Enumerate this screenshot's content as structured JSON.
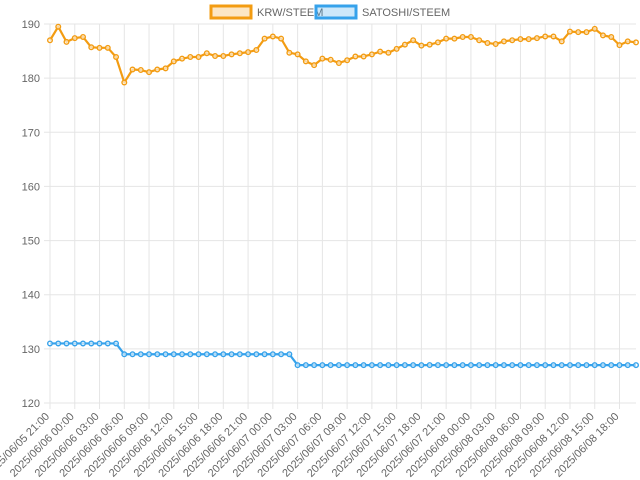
{
  "chart_data": {
    "type": "line",
    "title": "",
    "xlabel": "",
    "ylabel": "",
    "ylim": [
      120,
      190
    ],
    "yticks": [
      120,
      130,
      140,
      150,
      160,
      170,
      180,
      190
    ],
    "grid": true,
    "legend_position": "top-center",
    "categories": [
      "2025/06/05 21:00",
      "2025/06/05 22:00",
      "2025/06/05 23:00",
      "2025/06/06 00:00",
      "2025/06/06 01:00",
      "2025/06/06 02:00",
      "2025/06/06 03:00",
      "2025/06/06 04:00",
      "2025/06/06 05:00",
      "2025/06/06 06:00",
      "2025/06/06 07:00",
      "2025/06/06 08:00",
      "2025/06/06 09:00",
      "2025/06/06 10:00",
      "2025/06/06 11:00",
      "2025/06/06 12:00",
      "2025/06/06 13:00",
      "2025/06/06 14:00",
      "2025/06/06 15:00",
      "2025/06/06 16:00",
      "2025/06/06 17:00",
      "2025/06/06 18:00",
      "2025/06/06 19:00",
      "2025/06/06 20:00",
      "2025/06/06 21:00",
      "2025/06/06 22:00",
      "2025/06/06 23:00",
      "2025/06/07 00:00",
      "2025/06/07 01:00",
      "2025/06/07 02:00",
      "2025/06/07 03:00",
      "2025/06/07 04:00",
      "2025/06/07 05:00",
      "2025/06/07 06:00",
      "2025/06/07 07:00",
      "2025/06/07 08:00",
      "2025/06/07 09:00",
      "2025/06/07 10:00",
      "2025/06/07 11:00",
      "2025/06/07 12:00",
      "2025/06/07 13:00",
      "2025/06/07 14:00",
      "2025/06/07 15:00",
      "2025/06/07 16:00",
      "2025/06/07 17:00",
      "2025/06/07 18:00",
      "2025/06/07 19:00",
      "2025/06/07 20:00",
      "2025/06/07 21:00",
      "2025/06/07 22:00",
      "2025/06/07 23:00",
      "2025/06/08 00:00",
      "2025/06/08 01:00",
      "2025/06/08 02:00",
      "2025/06/08 03:00",
      "2025/06/08 04:00",
      "2025/06/08 05:00",
      "2025/06/08 06:00",
      "2025/06/08 07:00",
      "2025/06/08 08:00",
      "2025/06/08 09:00",
      "2025/06/08 10:00",
      "2025/06/08 11:00",
      "2025/06/08 12:00",
      "2025/06/08 13:00",
      "2025/06/08 14:00",
      "2025/06/08 15:00",
      "2025/06/08 16:00",
      "2025/06/08 17:00",
      "2025/06/08 18:00",
      "2025/06/08 19:00",
      "2025/06/08 20:00"
    ],
    "label_every": 3,
    "series": [
      {
        "name": "KRW/STEEM",
        "color": "#f39c12",
        "values": [
          187.0,
          189.5,
          186.7,
          187.4,
          187.6,
          185.7,
          185.6,
          185.6,
          183.9,
          179.2,
          181.6,
          181.5,
          181.1,
          181.6,
          181.8,
          183.1,
          183.6,
          183.9,
          183.9,
          184.6,
          184.1,
          184.1,
          184.4,
          184.6,
          184.8,
          185.2,
          187.3,
          187.7,
          187.3,
          184.7,
          184.4,
          183.1,
          182.4,
          183.6,
          183.4,
          182.8,
          183.3,
          184.0,
          184.0,
          184.4,
          184.9,
          184.7,
          185.4,
          186.2,
          187.0,
          186.0,
          186.2,
          186.6,
          187.3,
          187.3,
          187.6,
          187.6,
          187.0,
          186.5,
          186.3,
          186.8,
          187.0,
          187.2,
          187.2,
          187.4,
          187.7,
          187.7,
          186.8,
          188.6,
          188.5,
          188.5,
          189.1,
          187.9,
          187.6,
          186.1,
          186.8,
          186.6
        ]
      },
      {
        "name": "SATOSHI/STEEM",
        "color": "#36a2eb",
        "values": [
          131,
          131,
          131,
          131,
          131,
          131,
          131,
          131,
          131,
          129,
          129,
          129,
          129,
          129,
          129,
          129,
          129,
          129,
          129,
          129,
          129,
          129,
          129,
          129,
          129,
          129,
          129,
          129,
          129,
          129,
          127,
          127,
          127,
          127,
          127,
          127,
          127,
          127,
          127,
          127,
          127,
          127,
          127,
          127,
          127,
          127,
          127,
          127,
          127,
          127,
          127,
          127,
          127,
          127,
          127,
          127,
          127,
          127,
          127,
          127,
          127,
          127,
          127,
          127,
          127,
          127,
          127,
          127,
          127,
          127,
          127,
          127
        ]
      }
    ]
  }
}
